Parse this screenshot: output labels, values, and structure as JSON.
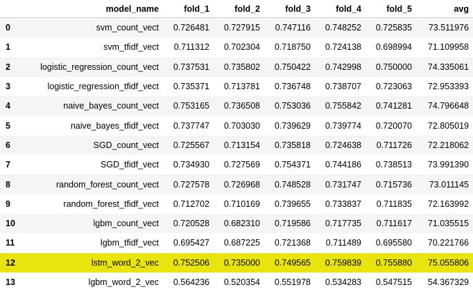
{
  "table": {
    "index_header": "",
    "columns": [
      "model_name",
      "fold_1",
      "fold_2",
      "fold_3",
      "fold_4",
      "fold_5",
      "avg"
    ],
    "highlight_color": "#e9e40e",
    "stripe_color": "#f5f5f5",
    "rows": [
      {
        "index": "0",
        "cells": [
          "svm_count_vect",
          "0.726481",
          "0.727915",
          "0.747116",
          "0.748252",
          "0.725835",
          "73.511976"
        ]
      },
      {
        "index": "1",
        "cells": [
          "svm_tfidf_vect",
          "0.711312",
          "0.702304",
          "0.718750",
          "0.724138",
          "0.698994",
          "71.109958"
        ]
      },
      {
        "index": "2",
        "cells": [
          "logistic_regression_count_vect",
          "0.737531",
          "0.735802",
          "0.750422",
          "0.742998",
          "0.750000",
          "74.335061"
        ]
      },
      {
        "index": "3",
        "cells": [
          "logistic_regression_tfidf_vect",
          "0.735371",
          "0.713781",
          "0.736748",
          "0.738707",
          "0.723063",
          "72.953393"
        ]
      },
      {
        "index": "4",
        "cells": [
          "naive_bayes_count_vect",
          "0.753165",
          "0.736508",
          "0.753036",
          "0.755842",
          "0.741281",
          "74.796648"
        ]
      },
      {
        "index": "5",
        "cells": [
          "naive_bayes_tfidf_vect",
          "0.737747",
          "0.703030",
          "0.739629",
          "0.739774",
          "0.720070",
          "72.805019"
        ]
      },
      {
        "index": "6",
        "cells": [
          "SGD_count_vect",
          "0.725567",
          "0.713154",
          "0.735818",
          "0.724638",
          "0.711726",
          "72.218062"
        ]
      },
      {
        "index": "7",
        "cells": [
          "SGD_tfidf_vect",
          "0.734930",
          "0.727569",
          "0.754371",
          "0.744186",
          "0.738513",
          "73.991390"
        ]
      },
      {
        "index": "8",
        "cells": [
          "random_forest_count_vect",
          "0.727578",
          "0.726968",
          "0.748528",
          "0.731747",
          "0.715736",
          "73.011145"
        ]
      },
      {
        "index": "9",
        "cells": [
          "random_forest_tfidf_vect",
          "0.712702",
          "0.710169",
          "0.739655",
          "0.733837",
          "0.711835",
          "72.163992"
        ]
      },
      {
        "index": "10",
        "cells": [
          "lgbm_count_vect",
          "0.720528",
          "0.682310",
          "0.719586",
          "0.717735",
          "0.711617",
          "71.035515"
        ]
      },
      {
        "index": "11",
        "cells": [
          "lgbm_tfidf_vect",
          "0.695427",
          "0.687225",
          "0.721368",
          "0.711489",
          "0.695580",
          "70.221766"
        ]
      },
      {
        "index": "12",
        "cells": [
          "lstm_word_2_vec",
          "0.752506",
          "0.735000",
          "0.749565",
          "0.759839",
          "0.755880",
          "75.055806"
        ],
        "highlighted": true
      },
      {
        "index": "13",
        "cells": [
          "lgbm_word_2_vec",
          "0.564236",
          "0.520354",
          "0.551978",
          "0.534283",
          "0.547515",
          "54.367329"
        ]
      }
    ]
  }
}
